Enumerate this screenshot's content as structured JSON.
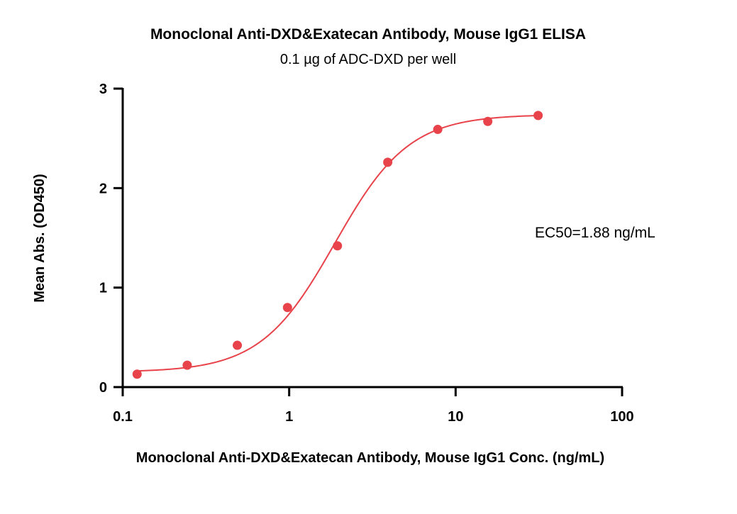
{
  "chart_data": {
    "type": "scatter",
    "title": "Monoclonal Anti-DXD&Exatecan Antibody, Mouse IgG1 ELISA",
    "subtitle": "0.1 µg of ADC-DXD per well",
    "xlabel": "Monoclonal Anti-DXD&Exatecan Antibody, Mouse IgG1 Conc. (ng/mL)",
    "ylabel": "Mean Abs. (OD450)",
    "xscale": "log",
    "xlim": [
      0.1,
      100
    ],
    "ylim": [
      0,
      3
    ],
    "xticks": [
      0.1,
      1,
      10,
      100
    ],
    "xtick_labels": [
      "0.1",
      "1",
      "10",
      "100"
    ],
    "yticks": [
      0,
      1,
      2,
      3
    ],
    "ytick_labels": [
      "0",
      "1",
      "2",
      "3"
    ],
    "grid": false,
    "annotation": "EC50=1.88 ng/mL",
    "color": "#e8434a",
    "series": [
      {
        "x": [
          0.122,
          0.244,
          0.488,
          0.977,
          1.95,
          3.91,
          7.81,
          15.6,
          31.3
        ],
        "y": [
          0.13,
          0.22,
          0.42,
          0.8,
          1.42,
          2.26,
          2.59,
          2.67,
          2.73
        ],
        "fit": "4PL",
        "fit_params": {
          "bottom": 0.15,
          "top": 2.74,
          "ec50": 1.88,
          "hill": 1.95
        }
      }
    ]
  }
}
